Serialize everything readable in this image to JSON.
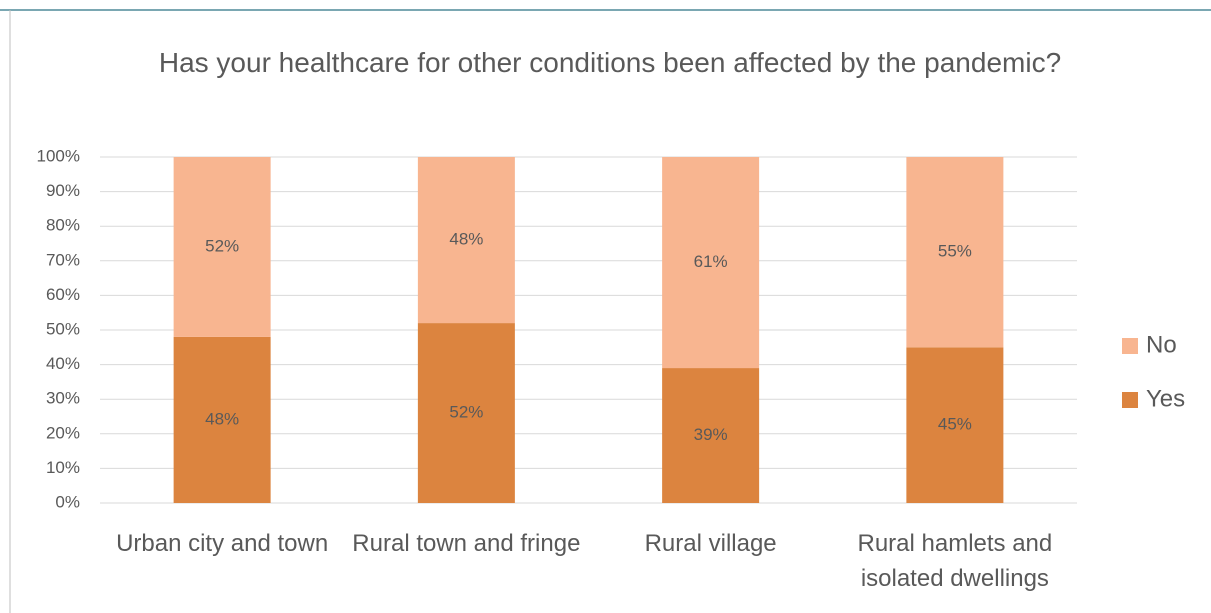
{
  "chart_data": {
    "type": "stacked_bar",
    "title": "Has your healthcare for other conditions been affected by the pandemic?",
    "categories": [
      "Urban city and town",
      "Rural town and fringe",
      "Rural village",
      "Rural hamlets and isolated dwellings"
    ],
    "series": [
      {
        "name": "Yes",
        "color": "#dc843f",
        "values": [
          48,
          52,
          39,
          45
        ],
        "value_labels": [
          "48%",
          "52%",
          "39%",
          "45%"
        ]
      },
      {
        "name": "No",
        "color": "#f8b590",
        "values": [
          52,
          48,
          61,
          55
        ],
        "value_labels": [
          "52%",
          "48%",
          "61%",
          "55%"
        ]
      }
    ],
    "ylim": [
      0,
      100
    ],
    "yticks": [
      {
        "value": 0,
        "label": "0%"
      },
      {
        "value": 10,
        "label": "10%"
      },
      {
        "value": 20,
        "label": "20%"
      },
      {
        "value": 30,
        "label": "30%"
      },
      {
        "value": 40,
        "label": "40%"
      },
      {
        "value": 50,
        "label": "50%"
      },
      {
        "value": 60,
        "label": "60%"
      },
      {
        "value": 70,
        "label": "70%"
      },
      {
        "value": 80,
        "label": "80%"
      },
      {
        "value": 90,
        "label": "90%"
      },
      {
        "value": 100,
        "label": "100%"
      }
    ],
    "grid": true,
    "legend": "right"
  }
}
